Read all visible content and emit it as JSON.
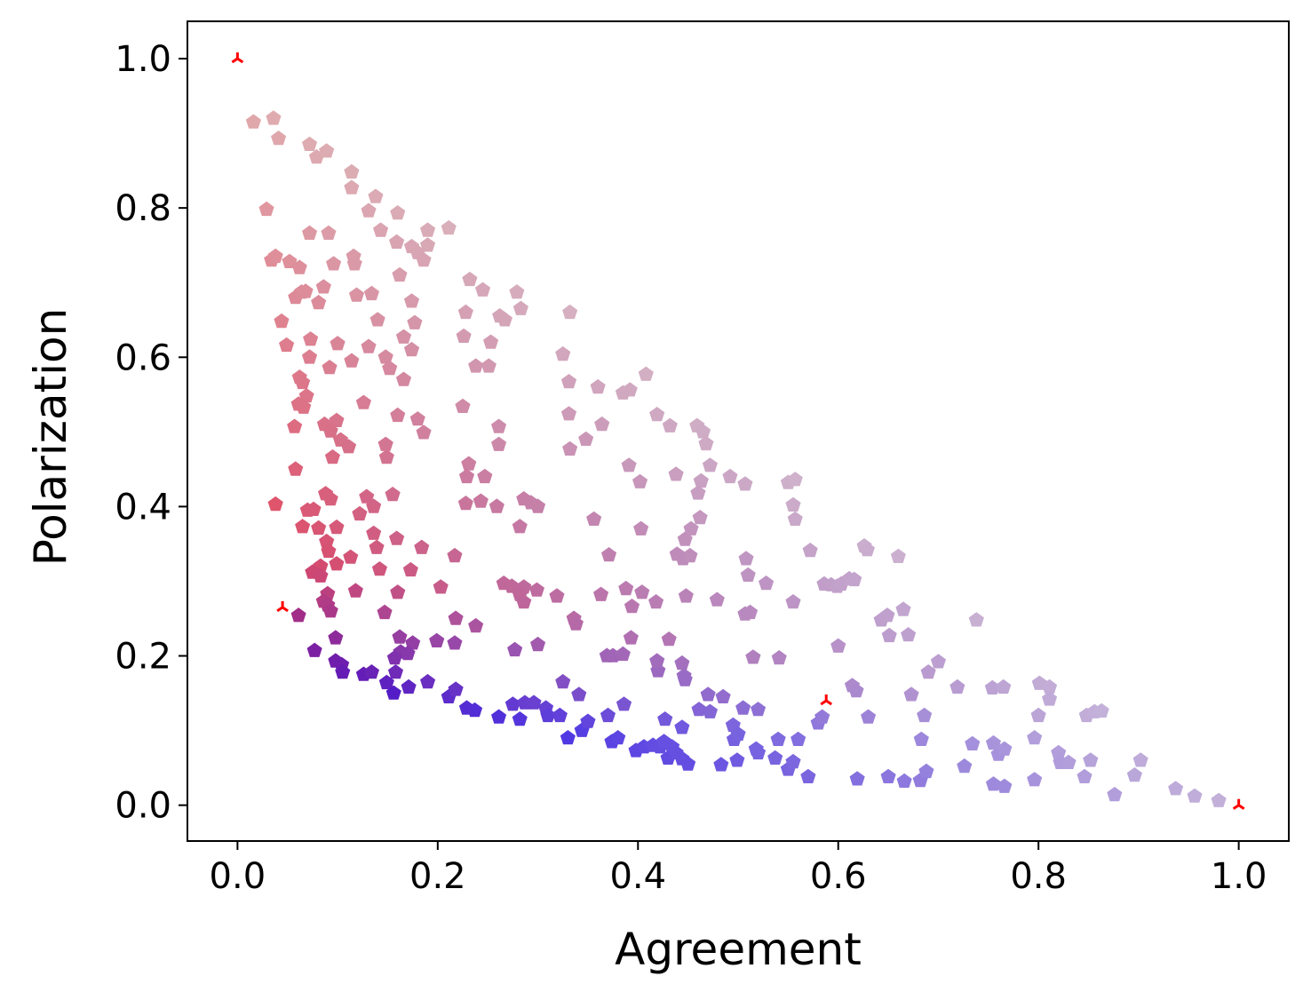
{
  "chart_data": {
    "type": "scatter",
    "title": "",
    "xlabel": "Agreement",
    "ylabel": "Polarization",
    "xlim": [
      -0.05,
      1.05
    ],
    "ylim": [
      -0.048,
      1.05
    ],
    "xticks": [
      0.0,
      0.2,
      0.4,
      0.6,
      0.8,
      1.0
    ],
    "yticks": [
      0.0,
      0.2,
      0.4,
      0.6,
      0.8,
      1.0
    ],
    "xtick_labels": [
      "0.0",
      "0.2",
      "0.4",
      "0.6",
      "0.8",
      "1.0"
    ],
    "ytick_labels": [
      "0.0",
      "0.2",
      "0.4",
      "0.6",
      "0.8",
      "1.0"
    ],
    "grid": false,
    "legend": "none",
    "marker": "pentagon",
    "color_scheme": {
      "description": "color blends red (low agreement, mid polarization) to blue (low polarization), paler for higher values",
      "red": "#e8334a",
      "blue": "#2a12e6",
      "pale_pink": "#e0b1b2",
      "pale_lavender": "#c6b3d9"
    },
    "highlight_points": {
      "marker": "tri",
      "color": "#ff0000",
      "points": [
        [
          0.0,
          1.0
        ],
        [
          0.045,
          0.265
        ],
        [
          0.588,
          0.14
        ],
        [
          1.0,
          0.0
        ]
      ]
    },
    "points": [
      [
        0.016,
        0.915
      ],
      [
        0.036,
        0.92
      ],
      [
        0.041,
        0.893
      ],
      [
        0.072,
        0.885
      ],
      [
        0.079,
        0.868
      ],
      [
        0.089,
        0.876
      ],
      [
        0.029,
        0.798
      ],
      [
        0.114,
        0.848
      ],
      [
        0.114,
        0.827
      ],
      [
        0.131,
        0.796
      ],
      [
        0.138,
        0.815
      ],
      [
        0.143,
        0.77
      ],
      [
        0.16,
        0.793
      ],
      [
        0.034,
        0.73
      ],
      [
        0.038,
        0.735
      ],
      [
        0.052,
        0.728
      ],
      [
        0.062,
        0.72
      ],
      [
        0.072,
        0.766
      ],
      [
        0.091,
        0.766
      ],
      [
        0.096,
        0.725
      ],
      [
        0.116,
        0.735
      ],
      [
        0.117,
        0.725
      ],
      [
        0.159,
        0.754
      ],
      [
        0.162,
        0.71
      ],
      [
        0.174,
        0.748
      ],
      [
        0.18,
        0.74
      ],
      [
        0.186,
        0.73
      ],
      [
        0.19,
        0.77
      ],
      [
        0.19,
        0.75
      ],
      [
        0.211,
        0.773
      ],
      [
        0.058,
        0.68
      ],
      [
        0.064,
        0.687
      ],
      [
        0.068,
        0.688
      ],
      [
        0.081,
        0.673
      ],
      [
        0.086,
        0.694
      ],
      [
        0.119,
        0.683
      ],
      [
        0.134,
        0.685
      ],
      [
        0.174,
        0.675
      ],
      [
        0.044,
        0.648
      ],
      [
        0.049,
        0.616
      ],
      [
        0.073,
        0.624
      ],
      [
        0.1,
        0.618
      ],
      [
        0.131,
        0.614
      ],
      [
        0.14,
        0.65
      ],
      [
        0.166,
        0.627
      ],
      [
        0.177,
        0.646
      ],
      [
        0.174,
        0.61
      ],
      [
        0.072,
        0.6
      ],
      [
        0.092,
        0.586
      ],
      [
        0.114,
        0.595
      ],
      [
        0.148,
        0.6
      ],
      [
        0.152,
        0.585
      ],
      [
        0.062,
        0.573
      ],
      [
        0.065,
        0.566
      ],
      [
        0.166,
        0.57
      ],
      [
        0.069,
        0.548
      ],
      [
        0.061,
        0.537
      ],
      [
        0.066,
        0.533
      ],
      [
        0.057,
        0.507
      ],
      [
        0.087,
        0.51
      ],
      [
        0.099,
        0.515
      ],
      [
        0.093,
        0.501
      ],
      [
        0.126,
        0.539
      ],
      [
        0.16,
        0.522
      ],
      [
        0.18,
        0.517
      ],
      [
        0.186,
        0.499
      ],
      [
        0.103,
        0.489
      ],
      [
        0.111,
        0.48
      ],
      [
        0.148,
        0.483
      ],
      [
        0.095,
        0.466
      ],
      [
        0.149,
        0.466
      ],
      [
        0.058,
        0.45
      ],
      [
        0.225,
        0.534
      ],
      [
        0.228,
        0.66
      ],
      [
        0.232,
        0.704
      ],
      [
        0.245,
        0.69
      ],
      [
        0.253,
        0.62
      ],
      [
        0.238,
        0.588
      ],
      [
        0.251,
        0.588
      ],
      [
        0.226,
        0.628
      ],
      [
        0.262,
        0.655
      ],
      [
        0.267,
        0.65
      ],
      [
        0.279,
        0.687
      ],
      [
        0.283,
        0.665
      ],
      [
        0.332,
        0.66
      ],
      [
        0.325,
        0.604
      ],
      [
        0.331,
        0.567
      ],
      [
        0.331,
        0.524
      ],
      [
        0.332,
        0.477
      ],
      [
        0.36,
        0.56
      ],
      [
        0.364,
        0.51
      ],
      [
        0.348,
        0.49
      ],
      [
        0.261,
        0.507
      ],
      [
        0.261,
        0.483
      ],
      [
        0.231,
        0.457
      ],
      [
        0.229,
        0.44
      ],
      [
        0.247,
        0.44
      ],
      [
        0.228,
        0.404
      ],
      [
        0.243,
        0.407
      ],
      [
        0.259,
        0.4
      ],
      [
        0.286,
        0.41
      ],
      [
        0.293,
        0.405
      ],
      [
        0.3,
        0.4
      ],
      [
        0.282,
        0.373
      ],
      [
        0.356,
        0.383
      ],
      [
        0.385,
        0.552
      ],
      [
        0.392,
        0.556
      ],
      [
        0.408,
        0.577
      ],
      [
        0.419,
        0.523
      ],
      [
        0.432,
        0.508
      ],
      [
        0.459,
        0.508
      ],
      [
        0.465,
        0.5
      ],
      [
        0.468,
        0.484
      ],
      [
        0.391,
        0.455
      ],
      [
        0.402,
        0.433
      ],
      [
        0.438,
        0.443
      ],
      [
        0.472,
        0.455
      ],
      [
        0.463,
        0.434
      ],
      [
        0.46,
        0.418
      ],
      [
        0.492,
        0.44
      ],
      [
        0.507,
        0.43
      ],
      [
        0.462,
        0.385
      ],
      [
        0.453,
        0.37
      ],
      [
        0.447,
        0.356
      ],
      [
        0.403,
        0.37
      ],
      [
        0.439,
        0.336
      ],
      [
        0.445,
        0.33
      ],
      [
        0.452,
        0.334
      ],
      [
        0.371,
        0.335
      ],
      [
        0.508,
        0.33
      ],
      [
        0.51,
        0.308
      ],
      [
        0.528,
        0.297
      ],
      [
        0.55,
        0.432
      ],
      [
        0.557,
        0.436
      ],
      [
        0.555,
        0.402
      ],
      [
        0.557,
        0.383
      ],
      [
        0.572,
        0.341
      ],
      [
        0.038,
        0.403
      ],
      [
        0.07,
        0.395
      ],
      [
        0.076,
        0.396
      ],
      [
        0.088,
        0.417
      ],
      [
        0.093,
        0.41
      ],
      [
        0.129,
        0.413
      ],
      [
        0.136,
        0.4
      ],
      [
        0.122,
        0.39
      ],
      [
        0.155,
        0.416
      ],
      [
        0.065,
        0.373
      ],
      [
        0.081,
        0.371
      ],
      [
        0.099,
        0.372
      ],
      [
        0.089,
        0.353
      ],
      [
        0.091,
        0.34
      ],
      [
        0.136,
        0.364
      ],
      [
        0.139,
        0.345
      ],
      [
        0.159,
        0.357
      ],
      [
        0.184,
        0.345
      ],
      [
        0.113,
        0.332
      ],
      [
        0.083,
        0.32
      ],
      [
        0.099,
        0.323
      ],
      [
        0.075,
        0.312
      ],
      [
        0.083,
        0.307
      ],
      [
        0.142,
        0.316
      ],
      [
        0.173,
        0.315
      ],
      [
        0.217,
        0.334
      ],
      [
        0.118,
        0.287
      ],
      [
        0.09,
        0.283
      ],
      [
        0.086,
        0.273
      ],
      [
        0.09,
        0.268
      ],
      [
        0.093,
        0.26
      ],
      [
        0.061,
        0.254
      ],
      [
        0.16,
        0.285
      ],
      [
        0.147,
        0.258
      ],
      [
        0.203,
        0.292
      ],
      [
        0.098,
        0.224
      ],
      [
        0.077,
        0.207
      ],
      [
        0.162,
        0.225
      ],
      [
        0.175,
        0.217
      ],
      [
        0.199,
        0.22
      ],
      [
        0.218,
        0.25
      ],
      [
        0.217,
        0.217
      ],
      [
        0.238,
        0.24
      ],
      [
        0.163,
        0.205
      ],
      [
        0.17,
        0.203
      ],
      [
        0.157,
        0.197
      ],
      [
        0.158,
        0.178
      ],
      [
        0.266,
        0.297
      ],
      [
        0.274,
        0.293
      ],
      [
        0.286,
        0.292
      ],
      [
        0.282,
        0.282
      ],
      [
        0.299,
        0.288
      ],
      [
        0.286,
        0.272
      ],
      [
        0.319,
        0.28
      ],
      [
        0.336,
        0.25
      ],
      [
        0.338,
        0.243
      ],
      [
        0.277,
        0.208
      ],
      [
        0.3,
        0.215
      ],
      [
        0.363,
        0.282
      ],
      [
        0.388,
        0.29
      ],
      [
        0.404,
        0.285
      ],
      [
        0.394,
        0.266
      ],
      [
        0.418,
        0.272
      ],
      [
        0.448,
        0.28
      ],
      [
        0.479,
        0.275
      ],
      [
        0.393,
        0.224
      ],
      [
        0.369,
        0.2
      ],
      [
        0.375,
        0.2
      ],
      [
        0.385,
        0.202
      ],
      [
        0.42,
        0.18
      ],
      [
        0.431,
        0.222
      ],
      [
        0.444,
        0.19
      ],
      [
        0.446,
        0.173
      ],
      [
        0.447,
        0.168
      ],
      [
        0.419,
        0.193
      ],
      [
        0.512,
        0.258
      ],
      [
        0.507,
        0.256
      ],
      [
        0.515,
        0.198
      ],
      [
        0.541,
        0.197
      ],
      [
        0.555,
        0.272
      ],
      [
        0.586,
        0.296
      ],
      [
        0.593,
        0.295
      ],
      [
        0.599,
        0.293
      ],
      [
        0.603,
        0.296
      ],
      [
        0.611,
        0.303
      ],
      [
        0.616,
        0.302
      ],
      [
        0.626,
        0.347
      ],
      [
        0.629,
        0.342
      ],
      [
        0.66,
        0.333
      ],
      [
        0.6,
        0.213
      ],
      [
        0.098,
        0.193
      ],
      [
        0.104,
        0.188
      ],
      [
        0.105,
        0.178
      ],
      [
        0.126,
        0.175
      ],
      [
        0.134,
        0.178
      ],
      [
        0.149,
        0.164
      ],
      [
        0.156,
        0.15
      ],
      [
        0.171,
        0.158
      ],
      [
        0.19,
        0.165
      ],
      [
        0.211,
        0.145
      ],
      [
        0.218,
        0.155
      ],
      [
        0.229,
        0.13
      ],
      [
        0.237,
        0.127
      ],
      [
        0.261,
        0.118
      ],
      [
        0.275,
        0.135
      ],
      [
        0.282,
        0.115
      ],
      [
        0.287,
        0.137
      ],
      [
        0.296,
        0.137
      ],
      [
        0.308,
        0.13
      ],
      [
        0.31,
        0.12
      ],
      [
        0.322,
        0.12
      ],
      [
        0.325,
        0.165
      ],
      [
        0.341,
        0.148
      ],
      [
        0.33,
        0.09
      ],
      [
        0.344,
        0.1
      ],
      [
        0.35,
        0.112
      ],
      [
        0.37,
        0.12
      ],
      [
        0.374,
        0.085
      ],
      [
        0.38,
        0.09
      ],
      [
        0.386,
        0.135
      ],
      [
        0.398,
        0.073
      ],
      [
        0.406,
        0.078
      ],
      [
        0.415,
        0.08
      ],
      [
        0.422,
        0.078
      ],
      [
        0.426,
        0.085
      ],
      [
        0.434,
        0.078
      ],
      [
        0.43,
        0.063
      ],
      [
        0.438,
        0.07
      ],
      [
        0.444,
        0.062
      ],
      [
        0.45,
        0.055
      ],
      [
        0.427,
        0.115
      ],
      [
        0.444,
        0.104
      ],
      [
        0.461,
        0.128
      ],
      [
        0.47,
        0.148
      ],
      [
        0.472,
        0.125
      ],
      [
        0.485,
        0.145
      ],
      [
        0.495,
        0.107
      ],
      [
        0.496,
        0.088
      ],
      [
        0.5,
        0.095
      ],
      [
        0.505,
        0.13
      ],
      [
        0.52,
        0.128
      ],
      [
        0.518,
        0.075
      ],
      [
        0.52,
        0.07
      ],
      [
        0.54,
        0.088
      ],
      [
        0.55,
        0.048
      ],
      [
        0.555,
        0.058
      ],
      [
        0.56,
        0.088
      ],
      [
        0.483,
        0.054
      ],
      [
        0.499,
        0.06
      ],
      [
        0.537,
        0.063
      ],
      [
        0.57,
        0.038
      ],
      [
        0.619,
        0.035
      ],
      [
        0.65,
        0.038
      ],
      [
        0.666,
        0.032
      ],
      [
        0.682,
        0.033
      ],
      [
        0.688,
        0.045
      ],
      [
        0.58,
        0.11
      ],
      [
        0.584,
        0.118
      ],
      [
        0.614,
        0.16
      ],
      [
        0.618,
        0.153
      ],
      [
        0.63,
        0.118
      ],
      [
        0.643,
        0.248
      ],
      [
        0.649,
        0.254
      ],
      [
        0.651,
        0.227
      ],
      [
        0.665,
        0.262
      ],
      [
        0.67,
        0.228
      ],
      [
        0.673,
        0.148
      ],
      [
        0.683,
        0.088
      ],
      [
        0.686,
        0.12
      ],
      [
        0.69,
        0.178
      ],
      [
        0.7,
        0.192
      ],
      [
        0.719,
        0.158
      ],
      [
        0.726,
        0.052
      ],
      [
        0.734,
        0.082
      ],
      [
        0.738,
        0.248
      ],
      [
        0.754,
        0.157
      ],
      [
        0.755,
        0.083
      ],
      [
        0.76,
        0.068
      ],
      [
        0.765,
        0.158
      ],
      [
        0.766,
        0.075
      ],
      [
        0.755,
        0.028
      ],
      [
        0.766,
        0.025
      ],
      [
        0.796,
        0.034
      ],
      [
        0.796,
        0.09
      ],
      [
        0.8,
        0.12
      ],
      [
        0.801,
        0.163
      ],
      [
        0.811,
        0.158
      ],
      [
        0.811,
        0.142
      ],
      [
        0.82,
        0.07
      ],
      [
        0.822,
        0.057
      ],
      [
        0.83,
        0.057
      ],
      [
        0.846,
        0.038
      ],
      [
        0.848,
        0.12
      ],
      [
        0.852,
        0.06
      ],
      [
        0.856,
        0.125
      ],
      [
        0.863,
        0.126
      ],
      [
        0.876,
        0.014
      ],
      [
        0.896,
        0.04
      ],
      [
        0.902,
        0.06
      ],
      [
        0.937,
        0.022
      ],
      [
        0.956,
        0.012
      ],
      [
        0.98,
        0.006
      ]
    ]
  }
}
